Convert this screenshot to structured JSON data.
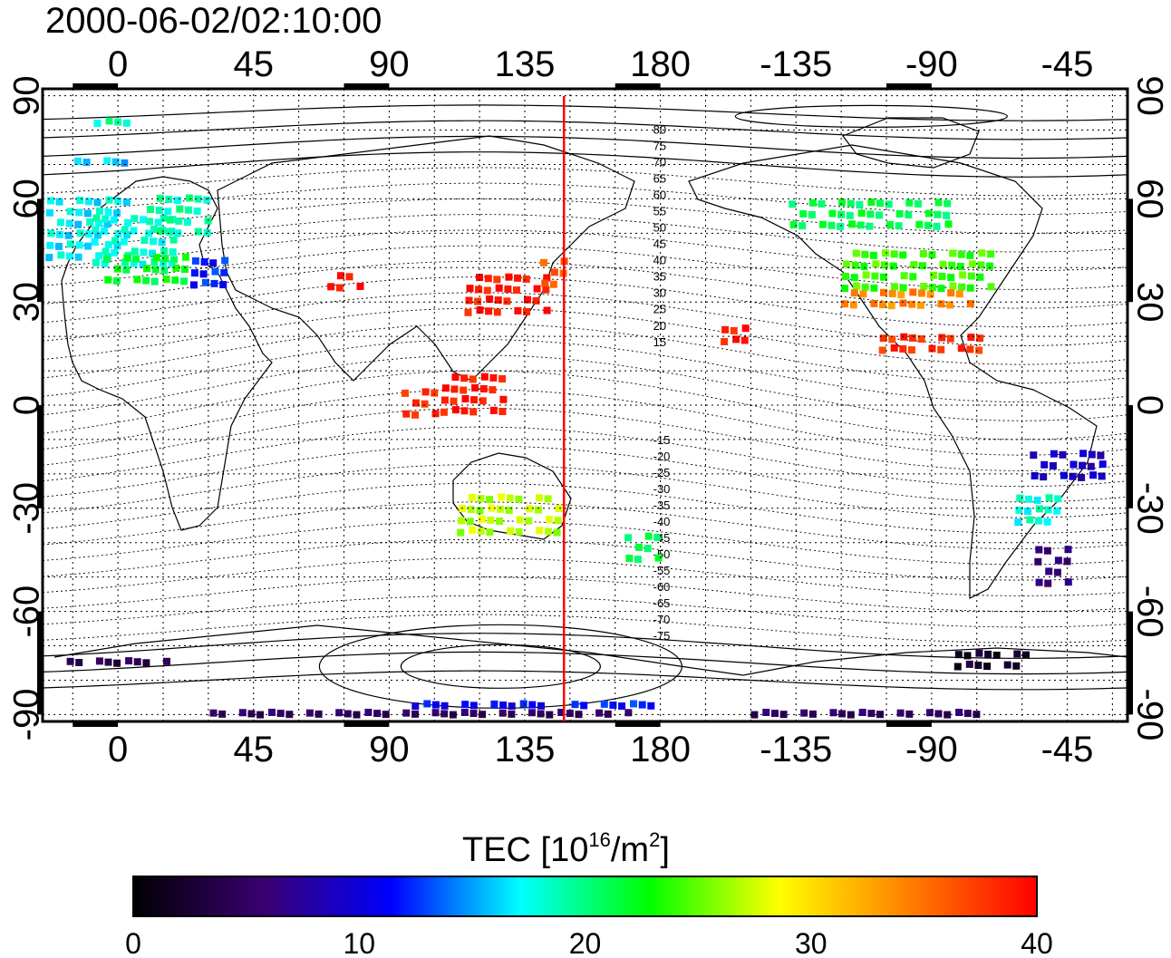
{
  "title": "2000-06-02/02:10:00",
  "map": {
    "x_tick_labels": [
      "0",
      "45",
      "90",
      "135",
      "180",
      "-135",
      "-90",
      "-45"
    ],
    "y_tick_labels": [
      "90",
      "60",
      "30",
      "0",
      "-30",
      "-60",
      "-90"
    ],
    "lon_range": [
      -25,
      335
    ],
    "lat_range": [
      -92,
      92
    ],
    "grid_lon_step": 15,
    "grid_lat_step": 10,
    "grid": true,
    "marker_line": {
      "lon": 148,
      "color": "#ff0000"
    },
    "magnetic_lat_labels": [
      "80",
      "75",
      "70",
      "65",
      "60",
      "55",
      "50",
      "45",
      "40",
      "35",
      "30",
      "25",
      "20",
      "15",
      "-15",
      "-20",
      "-25",
      "-30",
      "-35",
      "-40",
      "-45",
      "-50",
      "-55",
      "-60",
      "-65",
      "-70",
      "-75"
    ]
  },
  "colorbar": {
    "title_main": "TEC  [10",
    "title_sup1": "16",
    "title_mid": "/m",
    "title_sup2": "2",
    "title_end": "]",
    "tick_labels": [
      "0",
      "10",
      "20",
      "30",
      "40"
    ],
    "range": [
      0,
      40
    ],
    "colormap": [
      "#000000",
      "#3a0070",
      "#0000ff",
      "#00ffff",
      "#00ff00",
      "#ffff00",
      "#ff8000",
      "#ff0000"
    ]
  },
  "tec_patches": [
    {
      "lon": -10,
      "lat": 53,
      "w": 28,
      "h": 18,
      "tec": 17
    },
    {
      "lon": 5,
      "lat": 50,
      "w": 28,
      "h": 16,
      "tec": 18
    },
    {
      "lon": 20,
      "lat": 58,
      "w": 22,
      "h": 14,
      "tec": 19
    },
    {
      "lon": 10,
      "lat": 42,
      "w": 30,
      "h": 10,
      "tec": 22
    },
    {
      "lon": 0,
      "lat": 84,
      "w": 16,
      "h": 2,
      "tec": 19
    },
    {
      "lon": -5,
      "lat": 73,
      "w": 20,
      "h": 3,
      "tec": 16
    },
    {
      "lon": 30,
      "lat": 40,
      "w": 12,
      "h": 8,
      "tec": 12
    },
    {
      "lon": 75,
      "lat": 38,
      "w": 12,
      "h": 6,
      "tec": 39
    },
    {
      "lon": 130,
      "lat": 35,
      "w": 30,
      "h": 14,
      "tec": 39
    },
    {
      "lon": 145,
      "lat": 40,
      "w": 10,
      "h": 8,
      "tec": 36
    },
    {
      "lon": 118,
      "lat": 5,
      "w": 22,
      "h": 12,
      "tec": 39
    },
    {
      "lon": 100,
      "lat": 2,
      "w": 12,
      "h": 8,
      "tec": 38
    },
    {
      "lon": 130,
      "lat": -30,
      "w": 35,
      "h": 12,
      "tec": 27
    },
    {
      "lon": 175,
      "lat": -40,
      "w": 14,
      "h": 8,
      "tec": 21
    },
    {
      "lon": 205,
      "lat": 22,
      "w": 10,
      "h": 5,
      "tec": 39
    },
    {
      "lon": 250,
      "lat": 58,
      "w": 55,
      "h": 10,
      "tec": 21
    },
    {
      "lon": 265,
      "lat": 42,
      "w": 50,
      "h": 14,
      "tec": 24
    },
    {
      "lon": 262,
      "lat": 33,
      "w": 45,
      "h": 6,
      "tec": 34
    },
    {
      "lon": 270,
      "lat": 20,
      "w": 35,
      "h": 6,
      "tec": 38
    },
    {
      "lon": 315,
      "lat": -15,
      "w": 25,
      "h": 10,
      "tec": 9
    },
    {
      "lon": 305,
      "lat": -28,
      "w": 15,
      "h": 10,
      "tec": 18
    },
    {
      "lon": 310,
      "lat": -45,
      "w": 12,
      "h": 12,
      "tec": 6
    },
    {
      "lon": 290,
      "lat": -72,
      "w": 25,
      "h": 6,
      "tec": 2
    },
    {
      "lon": 0,
      "lat": -72,
      "w": 35,
      "h": 4,
      "tec": 4
    },
    {
      "lon": 120,
      "lat": -85,
      "w": 45,
      "h": 3,
      "tec": 11
    },
    {
      "lon": 165,
      "lat": -85,
      "w": 30,
      "h": 3,
      "tec": 12
    },
    {
      "lon": 250,
      "lat": -88,
      "w": 80,
      "h": 2,
      "tec": 5
    },
    {
      "lon": 100,
      "lat": -88,
      "w": 140,
      "h": 2,
      "tec": 5
    }
  ]
}
